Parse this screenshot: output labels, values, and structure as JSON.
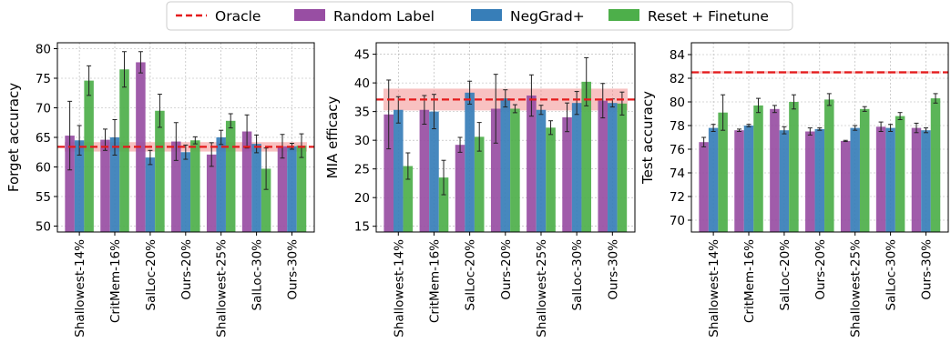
{
  "legend": [
    {
      "label": "Oracle",
      "kind": "line",
      "color": "#e41a1c"
    },
    {
      "label": "Random Label",
      "kind": "bar",
      "color": "#984ea3"
    },
    {
      "label": "NegGrad+",
      "kind": "bar",
      "color": "#377eb8"
    },
    {
      "label": "Reset + Finetune",
      "kind": "bar",
      "color": "#4daf4a"
    }
  ],
  "chart_data": [
    {
      "type": "bar",
      "ylabel": "Forget accuracy",
      "ylim": [
        49,
        81
      ],
      "yticks": [
        50,
        55,
        60,
        65,
        70,
        75,
        80
      ],
      "grid": true,
      "categories": [
        "Shallowest-14%",
        "CritMem-16%",
        "SalLoc-20%",
        "Ours-20%",
        "Shallowest-25%",
        "SalLoc-30%",
        "Ours-30%"
      ],
      "oracle": {
        "value": 63.4,
        "band": [
          62.6,
          64.2
        ]
      },
      "series": [
        {
          "name": "Random Label",
          "values": [
            65.3,
            64.6,
            77.7,
            64.3,
            62.1,
            66.0,
            63.5
          ],
          "err": [
            5.8,
            1.8,
            1.8,
            3.2,
            2.0,
            2.8,
            2.0
          ]
        },
        {
          "name": "NegGrad+",
          "values": [
            64.5,
            65.0,
            61.6,
            62.5,
            65.0,
            63.9,
            63.5
          ],
          "err": [
            2.5,
            3.0,
            1.2,
            1.2,
            1.2,
            1.5,
            0.5
          ]
        },
        {
          "name": "Reset + Finetune",
          "values": [
            74.6,
            76.5,
            69.5,
            64.5,
            67.8,
            59.7,
            63.6
          ],
          "err": [
            2.5,
            3.0,
            2.8,
            0.6,
            1.2,
            3.5,
            2.0
          ]
        }
      ]
    },
    {
      "type": "bar",
      "ylabel": "MIA efficacy",
      "ylim": [
        14,
        47
      ],
      "yticks": [
        15,
        20,
        25,
        30,
        35,
        40,
        45
      ],
      "grid": true,
      "categories": [
        "Shallowest-14%",
        "CritMem-16%",
        "SalLoc-20%",
        "Ours-20%",
        "Shallowest-25%",
        "SalLoc-30%",
        "Ours-30%"
      ],
      "oracle": {
        "value": 37.1,
        "band": [
          35.2,
          39.0
        ]
      },
      "series": [
        {
          "name": "Random Label",
          "values": [
            34.5,
            35.3,
            29.2,
            35.5,
            37.8,
            34.0,
            36.9
          ],
          "err": [
            6.0,
            2.5,
            1.3,
            6.0,
            3.6,
            2.5,
            3.0
          ]
        },
        {
          "name": "NegGrad+",
          "values": [
            35.3,
            35.0,
            38.3,
            37.3,
            35.3,
            36.5,
            36.5
          ],
          "err": [
            2.3,
            3.0,
            2.0,
            1.5,
            0.8,
            2.0,
            0.7
          ]
        },
        {
          "name": "Reset + Finetune",
          "values": [
            25.5,
            23.5,
            30.6,
            35.5,
            32.2,
            40.2,
            36.4
          ],
          "err": [
            2.3,
            3.0,
            2.5,
            0.7,
            1.2,
            4.2,
            2.0
          ]
        }
      ]
    },
    {
      "type": "bar",
      "ylabel": "Test accuracy",
      "ylim": [
        69,
        85
      ],
      "yticks": [
        70,
        72,
        74,
        76,
        78,
        80,
        82,
        84
      ],
      "grid": true,
      "categories": [
        "Shallowest-14%",
        "CritMem-16%",
        "SalLoc-20%",
        "Ours-20%",
        "Shallowest-25%",
        "SalLoc-30%",
        "Ours-30%"
      ],
      "oracle": {
        "value": 82.5,
        "band": [
          82.4,
          82.6
        ]
      },
      "series": [
        {
          "name": "Random Label",
          "values": [
            76.6,
            77.6,
            79.4,
            77.5,
            76.7,
            77.9,
            77.8
          ],
          "err": [
            0.4,
            0.1,
            0.3,
            0.3,
            0.05,
            0.4,
            0.4
          ]
        },
        {
          "name": "NegGrad+",
          "values": [
            77.8,
            78.0,
            77.6,
            77.7,
            77.8,
            77.8,
            77.6
          ],
          "err": [
            0.3,
            0.1,
            0.3,
            0.1,
            0.2,
            0.3,
            0.2
          ]
        },
        {
          "name": "Reset + Finetune",
          "values": [
            79.1,
            79.7,
            80.0,
            80.2,
            79.4,
            78.8,
            80.3
          ],
          "err": [
            1.5,
            0.6,
            0.6,
            0.5,
            0.2,
            0.3,
            0.4
          ]
        }
      ]
    }
  ]
}
